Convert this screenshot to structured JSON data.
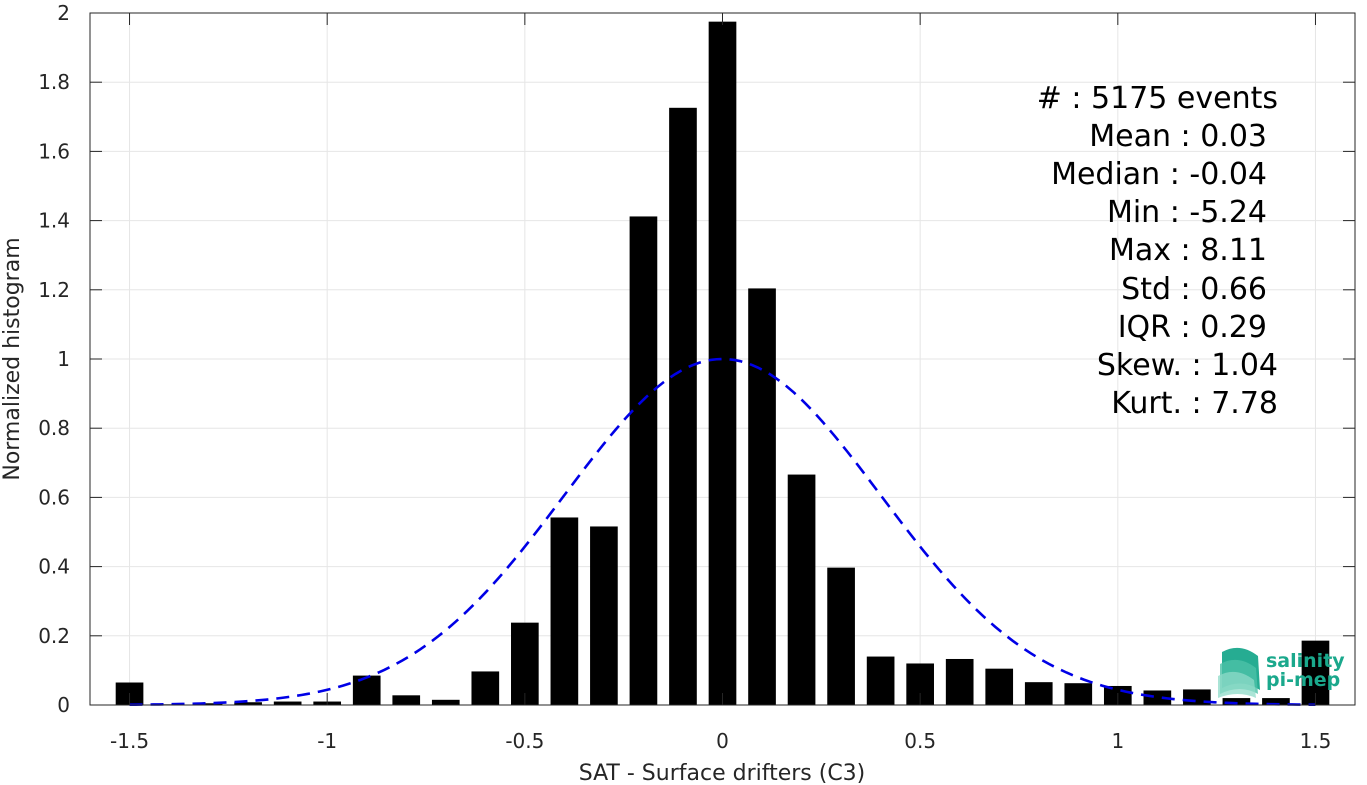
{
  "chart_data": {
    "type": "bar",
    "xlabel": "SAT - Surface drifters (C3)",
    "ylabel": "Normalized histogram",
    "xlim": [
      -1.6,
      1.6
    ],
    "ylim": [
      0,
      2
    ],
    "grid": true,
    "x_ticks": [
      -1.5,
      -1,
      -0.5,
      0,
      0.5,
      1,
      1.5
    ],
    "x_tick_labels": [
      "-1.5",
      "-1",
      "-0.5",
      "0",
      "0.5",
      "1",
      "1.5"
    ],
    "y_ticks": [
      0,
      0.2,
      0.4,
      0.6,
      0.8,
      1,
      1.2,
      1.4,
      1.6,
      1.8,
      2
    ],
    "y_tick_labels": [
      "0",
      "0.2",
      "0.4",
      "0.6",
      "0.8",
      "1",
      "1.2",
      "1.4",
      "1.6",
      "1.8",
      "2"
    ],
    "bin_width": 0.1,
    "bar_color": "#000000",
    "bars": {
      "x": [
        -1.5,
        -1.4,
        -1.3,
        -1.2,
        -1.1,
        -1.0,
        -0.9,
        -0.8,
        -0.7,
        -0.6,
        -0.5,
        -0.4,
        -0.3,
        -0.2,
        -0.1,
        0.0,
        0.1,
        0.2,
        0.3,
        0.4,
        0.5,
        0.6,
        0.7,
        0.8,
        0.9,
        1.0,
        1.1,
        1.2,
        1.3,
        1.4,
        1.5
      ],
      "values": [
        0.065,
        0.002,
        0.005,
        0.008,
        0.01,
        0.01,
        0.085,
        0.028,
        0.015,
        0.097,
        0.238,
        0.542,
        0.516,
        1.412,
        1.726,
        1.975,
        1.204,
        0.666,
        0.397,
        0.14,
        0.12,
        0.133,
        0.105,
        0.066,
        0.063,
        0.055,
        0.042,
        0.045,
        0.02,
        0.02,
        0.186
      ]
    },
    "gaussian_fit": {
      "style": "dashed",
      "color": "#0000e6",
      "mean": 0.0,
      "peak": 1.0,
      "sigma": 0.4,
      "x_range": [
        -1.5,
        1.5
      ]
    },
    "annotations": [
      "#  : 5175 events",
      "Mean : 0.03",
      "Median : -0.04",
      "Min : -5.24",
      "Max : 8.11",
      "Std : 0.66",
      "IQR : 0.29",
      "Skew. : 1.04",
      "Kurt. : 7.78"
    ]
  },
  "logo": {
    "line1": "salinity",
    "line2": "pi-mep",
    "color": "#1aa88c"
  }
}
